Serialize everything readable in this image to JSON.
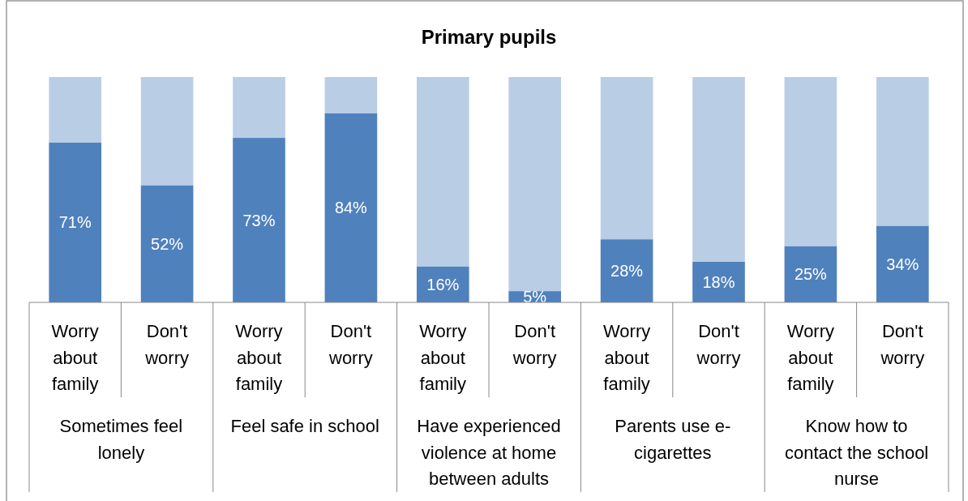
{
  "chart_data": {
    "type": "bar",
    "title": "Primary pupils",
    "stacked": true,
    "ylim": [
      0,
      100
    ],
    "tick_labels": "x",
    "categories": [
      "Worry about family",
      "Don't worry",
      "Worry about family",
      "Don't worry",
      "Worry about family",
      "Don't worry",
      "Worry about family",
      "Don't worry",
      "Worry about family",
      "Don't worry"
    ],
    "annotations": [
      "Sometimes feel lonely",
      "Feel safe in school",
      "Have experienced violence at home between adults",
      "Parents use e-cigarettes",
      "Know how to contact the school nurse"
    ],
    "series": [
      {
        "color": "#4f81bd",
        "values": [
          71,
          52,
          73,
          84,
          16,
          5,
          28,
          18,
          25,
          34
        ],
        "value_labels": [
          "71%",
          "52%",
          "73%",
          "84%",
          "16%",
          "5%",
          "28%",
          "18%",
          "25%",
          "34%"
        ]
      },
      {
        "color": "#b9cde5",
        "values": [
          29,
          48,
          27,
          16,
          84,
          95,
          72,
          82,
          75,
          66
        ]
      }
    ]
  }
}
